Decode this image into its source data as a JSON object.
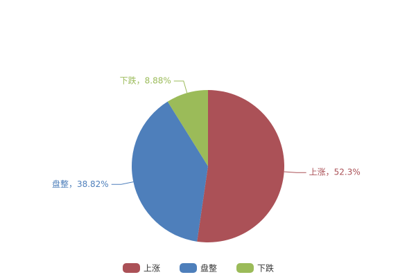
{
  "chart_data": {
    "type": "pie",
    "categories": [
      "上涨",
      "盘整",
      "下跌"
    ],
    "values": [
      52.3,
      38.82,
      8.88
    ],
    "value_labels": [
      "上涨，52.3%",
      "盘整，38.82%",
      "下跌，8.88%"
    ],
    "colors": [
      "#ab5157",
      "#4e7fbb",
      "#9bbb59"
    ]
  }
}
